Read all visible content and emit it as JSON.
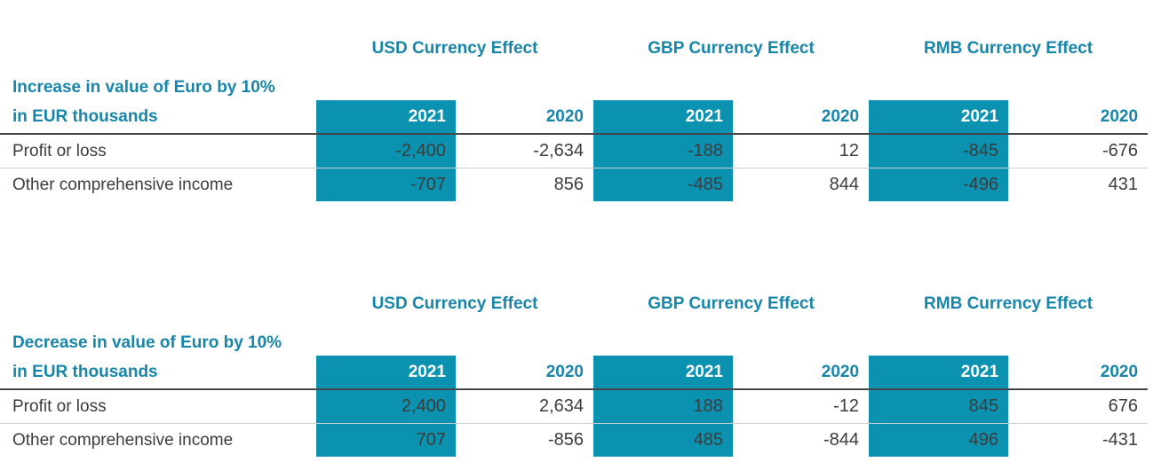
{
  "colors": {
    "accent_fill": "#0a92b0",
    "accent_text": "#1886a8",
    "body_text": "#3c3c3c",
    "header_rule": "#474747",
    "row_rule": "#cfcfcf"
  },
  "tables": [
    {
      "title": "Increase in value of Euro by 10%",
      "subtitle": "in EUR thousands",
      "groups": [
        "USD Currency Effect",
        "GBP Currency Effect",
        "RMB Currency Effect"
      ],
      "year_headers": [
        "2021",
        "2020"
      ],
      "rows": [
        {
          "label": "Profit or loss",
          "values": [
            "-2,400",
            "-2,634",
            "-188",
            "12",
            "-845",
            "-676"
          ]
        },
        {
          "label": "Other comprehensive income",
          "values": [
            "-707",
            "856",
            "-485",
            "844",
            "-496",
            "431"
          ]
        }
      ]
    },
    {
      "title": "Decrease in value of Euro by 10%",
      "subtitle": "in EUR thousands",
      "groups": [
        "USD Currency Effect",
        "GBP Currency Effect",
        "RMB Currency Effect"
      ],
      "year_headers": [
        "2021",
        "2020"
      ],
      "rows": [
        {
          "label": "Profit or loss",
          "values": [
            "2,400",
            "2,634",
            "188",
            "-12",
            "845",
            "676"
          ]
        },
        {
          "label": "Other comprehensive income",
          "values": [
            "707",
            "-856",
            "485",
            "-844",
            "496",
            "-431"
          ]
        }
      ]
    }
  ]
}
